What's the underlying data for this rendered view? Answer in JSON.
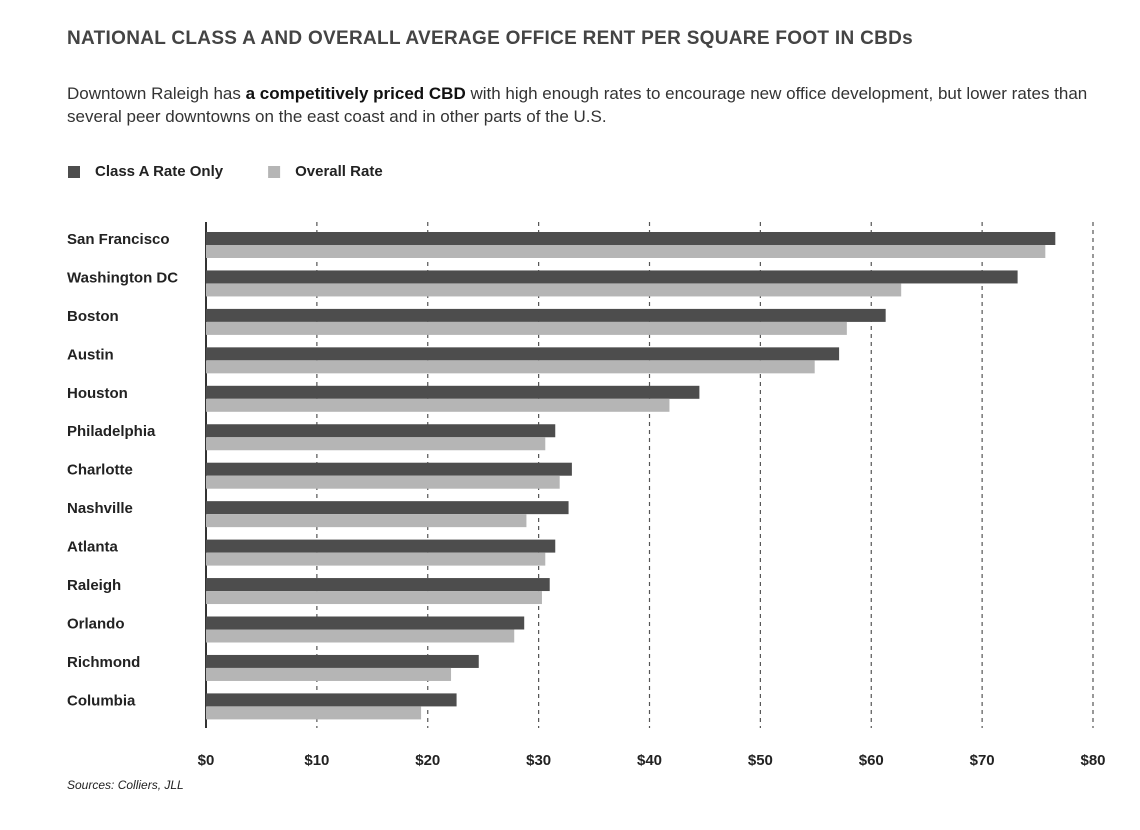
{
  "chart_data": {
    "type": "hbar",
    "title": "NATIONAL CLASS A AND OVERALL AVERAGE OFFICE RENT PER SQUARE FOOT IN CBDs",
    "subtitle": [
      "Downtown Raleigh has ",
      "a competitively priced CBD",
      " with high enough rates to encourage new office development, but lower rates than several peer downtowns on the east coast and in other parts of the U.S."
    ],
    "categories": [
      "San Francisco",
      "Washington DC",
      "Boston",
      "Austin",
      "Houston",
      "Philadelphia",
      "Charlotte",
      "Nashville",
      "Atlanta",
      "Raleigh",
      "Orlando",
      "Richmond",
      "Columbia"
    ],
    "highlight_index": 9,
    "series": [
      {
        "name": "Class A Rate Only",
        "color": "#4d4d4d",
        "values": [
          76.6,
          73.2,
          61.3,
          57.1,
          44.5,
          31.5,
          33.0,
          32.7,
          31.5,
          31.0,
          28.7,
          24.6,
          22.6
        ]
      },
      {
        "name": "Overall Rate",
        "color": "#b5b5b5",
        "values": [
          75.7,
          62.7,
          57.8,
          54.9,
          41.8,
          30.6,
          31.9,
          28.9,
          30.6,
          30.3,
          27.8,
          22.1,
          19.4
        ]
      }
    ],
    "xlim": [
      0,
      80
    ],
    "xticks": [
      {
        "value": 0,
        "label": "$0"
      },
      {
        "value": 10,
        "label": "$10"
      },
      {
        "value": 20,
        "label": "$20"
      },
      {
        "value": 30,
        "label": "$30"
      },
      {
        "value": 40,
        "label": "$40"
      },
      {
        "value": 50,
        "label": "$50"
      },
      {
        "value": 60,
        "label": "$60"
      },
      {
        "value": 70,
        "label": "$70"
      },
      {
        "value": 80,
        "label": "$80"
      }
    ],
    "grid": true,
    "legend": "top-left",
    "source": "Sources: Colliers, JLL"
  }
}
